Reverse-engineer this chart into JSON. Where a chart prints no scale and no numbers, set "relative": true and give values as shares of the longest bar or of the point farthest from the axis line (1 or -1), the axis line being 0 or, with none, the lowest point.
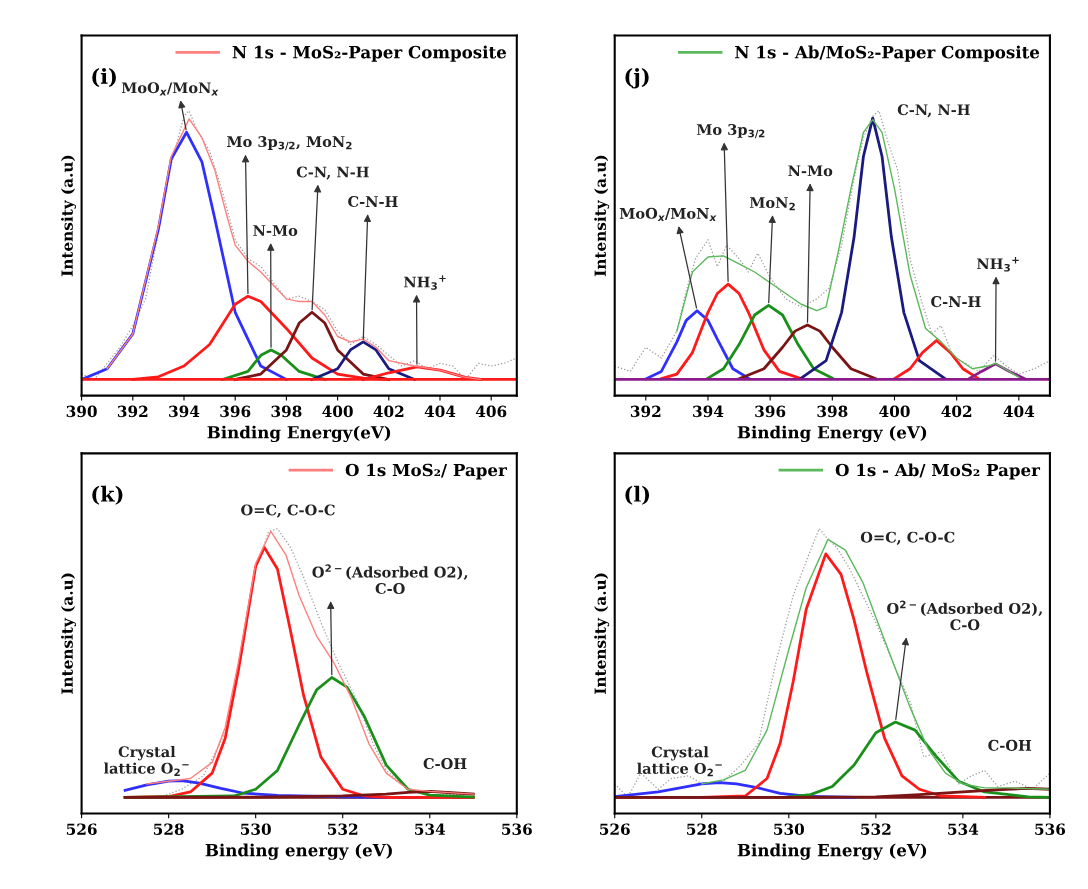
{
  "chart_data": [
    {
      "type": "line",
      "relative": true,
      "xlabel": "Binding Energy(eV)",
      "ylabel": "Intensity (a.u)",
      "xlim": [
        390,
        407
      ],
      "xticks": [
        390,
        392,
        394,
        396,
        398,
        400,
        402,
        404,
        406
      ],
      "tick_labels": "x",
      "grid": false,
      "legend": "top right",
      "annotations": [
        "(i)",
        {
          "text": "MoO$_{x}$/MoN$_{x}$",
          "x": 394.1,
          "y": 0.92
        },
        {
          "text": "Mo 3p$_{3/2}$, MoN$_{2}$",
          "x": 396.5,
          "y": 0.31
        },
        {
          "text": "N-Mo",
          "x": 397.4,
          "y": 0.11
        },
        {
          "text": "C-N, N-H",
          "x": 399,
          "y": 0.25
        },
        {
          "text": "C-N-H",
          "x": 401,
          "y": 0.14
        },
        {
          "text": "NH$_{3}$$^{+}$",
          "x": 403.1,
          "y": 0.047
        }
      ],
      "series": [
        {
          "color": "#9a9a9a",
          "line_style": "dotted",
          "x": [
            390,
            390.5,
            391,
            391.5,
            392,
            392.5,
            393,
            393.5,
            394,
            394.2,
            394.5,
            395,
            395.5,
            396,
            396.5,
            397,
            397.5,
            398,
            398.5,
            399,
            399.5,
            400,
            400.5,
            401,
            401.5,
            402,
            402.5,
            403,
            403.5,
            404,
            404.5,
            405,
            405.5,
            406,
            406.5,
            407
          ],
          "values": [
            0.02,
            0.0,
            0.06,
            0.12,
            0.2,
            0.3,
            0.55,
            0.8,
            0.98,
            1.0,
            0.93,
            0.85,
            0.7,
            0.52,
            0.45,
            0.42,
            0.36,
            0.3,
            0.31,
            0.29,
            0.26,
            0.18,
            0.13,
            0.16,
            0.13,
            0.09,
            0.05,
            0.07,
            0.04,
            0.06,
            0.05,
            0.0,
            0.06,
            0.05,
            0.06,
            0.08
          ]
        },
        {
          "color": "#2f2fff",
          "x": [
            390,
            391,
            392,
            393,
            393.5,
            394.1,
            394.7,
            395.2,
            396,
            397,
            398
          ],
          "values": [
            0.0,
            0.04,
            0.17,
            0.56,
            0.82,
            0.92,
            0.81,
            0.6,
            0.25,
            0.05,
            0.0
          ]
        },
        {
          "color": "#ff1a1a",
          "x": [
            392,
            393,
            394,
            395,
            396,
            396.5,
            397,
            398,
            399,
            400,
            401,
            402
          ],
          "values": [
            0.0,
            0.01,
            0.05,
            0.13,
            0.28,
            0.31,
            0.29,
            0.19,
            0.08,
            0.02,
            0.005,
            0.0
          ]
        },
        {
          "color": "#1a8f1a",
          "x": [
            395.5,
            396.5,
            397,
            397.4,
            397.8,
            398.5,
            399.5
          ],
          "values": [
            0.0,
            0.03,
            0.09,
            0.11,
            0.09,
            0.03,
            0.0
          ]
        },
        {
          "color": "#7a1515",
          "x": [
            396,
            397,
            398,
            398.5,
            399,
            399.5,
            400,
            401,
            402
          ],
          "values": [
            0.0,
            0.02,
            0.11,
            0.21,
            0.25,
            0.21,
            0.11,
            0.02,
            0.0
          ]
        },
        {
          "color": "#1a1a80",
          "x": [
            399,
            400,
            400.5,
            401,
            401.5,
            402,
            403
          ],
          "values": [
            0.0,
            0.04,
            0.11,
            0.14,
            0.11,
            0.04,
            0.0
          ]
        },
        {
          "color": "#ff1a1a",
          "x": [
            401,
            402,
            403.1,
            404,
            405,
            405.6
          ],
          "values": [
            0.0,
            0.025,
            0.047,
            0.035,
            0.008,
            0.0
          ]
        },
        {
          "color": "#ff1a1a",
          "x": [
            390,
            407
          ],
          "values": [
            0,
            0
          ]
        },
        {
          "name": "N 1s - MoS₂-Paper Composite",
          "color": "#ff7f7f",
          "x": [
            391,
            392,
            393,
            393.5,
            394.2,
            394.7,
            395.2,
            395.7,
            396,
            396.5,
            397,
            397.5,
            398,
            398.5,
            399,
            399.5,
            400,
            400.5,
            401,
            401.5,
            402,
            403,
            404,
            405,
            405.6
          ],
          "values": [
            0.04,
            0.17,
            0.57,
            0.83,
            0.97,
            0.9,
            0.78,
            0.6,
            0.5,
            0.44,
            0.4,
            0.35,
            0.3,
            0.29,
            0.29,
            0.24,
            0.16,
            0.14,
            0.15,
            0.12,
            0.07,
            0.05,
            0.035,
            0.008,
            0.0
          ]
        }
      ]
    },
    {
      "type": "line",
      "relative": true,
      "xlabel": "Binding Energy (eV)",
      "ylabel": "Intensity (a.u)",
      "xlim": [
        391,
        405
      ],
      "xticks": [
        392,
        394,
        396,
        398,
        400,
        402,
        404
      ],
      "tick_labels": "x",
      "grid": false,
      "legend": "top right",
      "annotations": [
        "(j)",
        {
          "text": "MoO$_{x}$/MoN$_{x}$",
          "x": 393.65,
          "y": 0.256
        },
        {
          "text": "Mo 3p$_{3/2}$",
          "x": 394.65,
          "y": 0.355
        },
        {
          "text": "MoN$_{2}$",
          "x": 395.95,
          "y": 0.276
        },
        {
          "text": "N-Mo",
          "x": 397.2,
          "y": 0.203
        },
        {
          "text": "C-N, N-H",
          "x": 399.3,
          "y": 0.973
        },
        {
          "text": "C-N-H",
          "x": 401.35,
          "y": 0.145
        },
        {
          "text": "NH$_{3}$$^{+}$",
          "x": 403.25,
          "y": 0.058
        }
      ],
      "series": [
        {
          "color": "#9a9a9a",
          "line_style": "dotted",
          "x": [
            391,
            391.5,
            392,
            392.5,
            393,
            393.3,
            393.6,
            394,
            394.3,
            394.6,
            395,
            395.3,
            395.6,
            396,
            396.5,
            397,
            397.5,
            397.9,
            398.3,
            398.7,
            399,
            399.3,
            399.5,
            399.8,
            400.1,
            400.5,
            400.9,
            401.2,
            401.5,
            401.9,
            402.3,
            402.7,
            403.2,
            403.6,
            404,
            404.5,
            405
          ],
          "values": [
            0.05,
            0.03,
            0.12,
            0.08,
            0.18,
            0.33,
            0.45,
            0.52,
            0.42,
            0.5,
            0.45,
            0.4,
            0.47,
            0.38,
            0.3,
            0.27,
            0.3,
            0.34,
            0.5,
            0.75,
            0.9,
            0.98,
            1.0,
            0.88,
            0.78,
            0.45,
            0.28,
            0.17,
            0.2,
            0.08,
            0.06,
            0.03,
            0.09,
            0.05,
            0.02,
            0.04,
            0.07
          ]
        },
        {
          "color": "#2f2fff",
          "x": [
            392,
            392.5,
            393,
            393.3,
            393.65,
            394,
            394.3,
            394.8,
            395.3
          ],
          "values": [
            0.002,
            0.03,
            0.14,
            0.22,
            0.256,
            0.22,
            0.15,
            0.04,
            0.005
          ]
        },
        {
          "color": "#ff1a1a",
          "x": [
            392.5,
            393,
            393.5,
            394,
            394.3,
            394.65,
            395,
            395.3,
            395.8,
            396.3,
            397
          ],
          "values": [
            0.003,
            0.02,
            0.1,
            0.25,
            0.32,
            0.355,
            0.32,
            0.25,
            0.11,
            0.03,
            0.003
          ]
        },
        {
          "color": "#1a8f1a",
          "x": [
            394,
            394.5,
            395,
            395.5,
            395.95,
            396.4,
            396.9,
            397.4,
            398
          ],
          "values": [
            0.005,
            0.04,
            0.13,
            0.24,
            0.276,
            0.24,
            0.13,
            0.04,
            0.005
          ]
        },
        {
          "color": "#7a1515",
          "x": [
            395,
            395.8,
            396.4,
            396.8,
            397.2,
            397.6,
            398,
            398.6,
            399.4
          ],
          "values": [
            0.003,
            0.04,
            0.12,
            0.18,
            0.203,
            0.18,
            0.12,
            0.04,
            0.003
          ]
        },
        {
          "color": "#1a1a80",
          "x": [
            397,
            397.8,
            398.3,
            398.7,
            399,
            399.3,
            399.6,
            399.9,
            400.3,
            400.8,
            401.6
          ],
          "values": [
            0.005,
            0.07,
            0.25,
            0.53,
            0.83,
            0.973,
            0.83,
            0.53,
            0.25,
            0.07,
            0.005
          ]
        },
        {
          "color": "#ff1a1a",
          "x": [
            400,
            400.5,
            400.9,
            401.35,
            401.8,
            402.2,
            402.7
          ],
          "values": [
            0.003,
            0.04,
            0.1,
            0.145,
            0.1,
            0.04,
            0.003
          ]
        },
        {
          "color": "#8b1a8b",
          "x": [
            402.4,
            402.8,
            403.25,
            403.7,
            404.2
          ],
          "values": [
            0.003,
            0.03,
            0.058,
            0.03,
            0.002
          ]
        },
        {
          "color": "#8b1a8b",
          "x": [
            391,
            405
          ],
          "values": [
            0,
            0
          ]
        },
        {
          "name": "N 1s - Ab/MoS₂-Paper Composite",
          "color": "#5cb85c",
          "x": [
            393,
            393.5,
            394,
            394.5,
            395,
            395.5,
            396,
            396.5,
            397,
            397.5,
            397.8,
            398.2,
            398.6,
            399,
            399.3,
            399.6,
            400,
            400.5,
            401,
            401.5,
            402,
            402.5,
            403,
            403.25,
            403.6,
            404
          ],
          "values": [
            0.18,
            0.4,
            0.456,
            0.46,
            0.43,
            0.4,
            0.36,
            0.32,
            0.28,
            0.256,
            0.27,
            0.48,
            0.71,
            0.92,
            0.967,
            0.92,
            0.71,
            0.39,
            0.19,
            0.14,
            0.08,
            0.04,
            0.05,
            0.06,
            0.037,
            0.008
          ]
        }
      ]
    },
    {
      "type": "line",
      "relative": true,
      "xlabel": "Binding energy (eV)",
      "ylabel": "Intensity (a.u)",
      "xlim": [
        526,
        536
      ],
      "xticks": [
        526,
        528,
        530,
        532,
        534,
        536
      ],
      "tick_labels": "x",
      "grid": false,
      "legend": "top right",
      "annotations": [
        "(k)",
        {
          "text": "O=C, C-O-C",
          "x": 530.2,
          "y": 0.93
        },
        {
          "text": "O$^{2−}$(Adsorbed O2),\nC-O",
          "x": 531.75,
          "y": 0.446
        },
        {
          "text": "Crystal\nlattice O$_{2}$$^{−}$",
          "x": 527.5,
          "y": 0.046
        },
        {
          "text": "C-OH",
          "x": 534,
          "y": 0.022
        }
      ],
      "series": [
        {
          "color": "#7a1515",
          "x": [
            527,
            535
          ],
          "values": [
            0,
            0
          ]
        },
        {
          "color": "#9a9a9a",
          "line_style": "dotted",
          "x": [
            527.8,
            528.3,
            528.8,
            529.3,
            529.7,
            530,
            530.3,
            530.5,
            530.8,
            531.1,
            531.5,
            531.9,
            532.3,
            532.7,
            533,
            533.5,
            534,
            535
          ],
          "values": [
            0.0,
            0.03,
            0.08,
            0.24,
            0.55,
            0.85,
            0.99,
            1.0,
            0.93,
            0.82,
            0.65,
            0.5,
            0.37,
            0.2,
            0.1,
            0.03,
            0.01,
            0.01
          ]
        },
        {
          "color": "#2f2fff",
          "x": [
            527,
            527.5,
            528,
            528.3,
            528.7,
            529.2,
            529.7,
            530.5,
            532,
            533
          ],
          "values": [
            0.026,
            0.046,
            0.06,
            0.062,
            0.053,
            0.033,
            0.016,
            0.007,
            0.002,
            0.0
          ]
        },
        {
          "color": "#ff1a1a",
          "x": [
            527,
            528,
            528.5,
            529,
            529.3,
            529.6,
            530,
            530.2,
            530.5,
            530.8,
            531.1,
            531.5,
            532,
            532.5,
            533,
            535
          ],
          "values": [
            0.0,
            0.003,
            0.02,
            0.09,
            0.22,
            0.47,
            0.86,
            0.93,
            0.85,
            0.62,
            0.38,
            0.15,
            0.03,
            0.005,
            0.0,
            0.0
          ]
        },
        {
          "color": "#1a8f1a",
          "x": [
            527,
            529.5,
            530,
            530.5,
            531,
            531.4,
            531.75,
            532.1,
            532.5,
            533,
            533.5,
            534,
            535
          ],
          "values": [
            0.0,
            0.005,
            0.03,
            0.1,
            0.27,
            0.4,
            0.446,
            0.41,
            0.3,
            0.12,
            0.03,
            0.008,
            0.001
          ]
        },
        {
          "color": "#7a1515",
          "x": [
            527,
            530,
            532,
            533,
            533.5,
            534,
            534.5,
            535
          ],
          "values": [
            0.0,
            0.001,
            0.005,
            0.012,
            0.018,
            0.022,
            0.017,
            0.012
          ]
        },
        {
          "name": "O 1s MoS₂/ Paper",
          "color": "#ff7f7f",
          "x": [
            527.5,
            528,
            528.5,
            529,
            529.3,
            529.6,
            530,
            530.35,
            530.7,
            531,
            531.4,
            531.8,
            532.2,
            532.6,
            533,
            533.5,
            534,
            535
          ],
          "values": [
            0.05,
            0.06,
            0.07,
            0.13,
            0.26,
            0.5,
            0.87,
            0.99,
            0.9,
            0.75,
            0.6,
            0.5,
            0.37,
            0.2,
            0.09,
            0.03,
            0.022,
            0.012
          ]
        }
      ]
    },
    {
      "type": "line",
      "relative": true,
      "xlabel": "Binding Energy (eV)",
      "ylabel": "Intensity (a.u)",
      "xlim": [
        526,
        536
      ],
      "xticks": [
        526,
        528,
        530,
        532,
        534,
        536
      ],
      "tick_labels": "x",
      "grid": false,
      "legend": "top right",
      "annotations": [
        "(l)",
        {
          "text": "O=C, C-O-C",
          "x": 530.85,
          "y": 0.906
        },
        {
          "text": "O$^{2−}$(Adsorbed O2),\nC-O",
          "x": 532.45,
          "y": 0.28
        },
        {
          "text": "Crystal\nlattice O$_{2}$$^{−}$",
          "x": 527.5,
          "y": 0.035
        },
        {
          "text": "C-OH",
          "x": 535.3,
          "y": 0.033
        }
      ],
      "series": [
        {
          "color": "#7a1515",
          "x": [
            526,
            536
          ],
          "values": [
            0,
            0
          ]
        },
        {
          "color": "#9a9a9a",
          "line_style": "dotted",
          "x": [
            526,
            526.3,
            526.6,
            527,
            527.3,
            527.7,
            528,
            528.5,
            528.9,
            529.3,
            529.7,
            530.1,
            530.5,
            530.7,
            530.85,
            531.1,
            531.4,
            531.7,
            532,
            532.4,
            532.8,
            533.1,
            533.5,
            533.9,
            534.2,
            534.5,
            534.8,
            535.2,
            535.6,
            536
          ],
          "values": [
            0.05,
            0.0,
            0.09,
            0.03,
            0.07,
            0.08,
            0.05,
            0.06,
            0.12,
            0.2,
            0.5,
            0.75,
            0.92,
            1.0,
            0.97,
            0.93,
            0.85,
            0.75,
            0.65,
            0.5,
            0.35,
            0.15,
            0.17,
            0.05,
            0.08,
            0.1,
            0.04,
            0.06,
            0.03,
            0.09
          ]
        },
        {
          "color": "#2f2fff",
          "x": [
            526,
            527,
            527.5,
            528,
            528.4,
            528.8,
            529.3,
            529.8,
            530.5,
            531.5
          ],
          "values": [
            0.003,
            0.02,
            0.035,
            0.05,
            0.055,
            0.05,
            0.035,
            0.015,
            0.003,
            0.0
          ]
        },
        {
          "color": "#ff1a1a",
          "x": [
            528,
            529,
            529.5,
            529.8,
            530.1,
            530.4,
            530.85,
            531.2,
            531.5,
            531.8,
            532.2,
            532.6,
            533,
            533.5,
            534.5
          ],
          "values": [
            0.0,
            0.005,
            0.07,
            0.2,
            0.43,
            0.7,
            0.906,
            0.83,
            0.66,
            0.46,
            0.22,
            0.08,
            0.03,
            0.005,
            0.0
          ]
        },
        {
          "color": "#1a8f1a",
          "x": [
            530,
            530.5,
            531,
            531.5,
            532,
            532.45,
            532.9,
            533.4,
            533.9,
            534.5,
            535.5,
            536
          ],
          "values": [
            0.002,
            0.01,
            0.04,
            0.12,
            0.24,
            0.28,
            0.25,
            0.15,
            0.06,
            0.02,
            0.002,
            0.0
          ]
        },
        {
          "color": "#7a1515",
          "x": [
            526,
            530,
            532,
            533,
            534,
            535,
            535.5,
            536
          ],
          "values": [
            0.0,
            0.0,
            0.002,
            0.01,
            0.02,
            0.03,
            0.033,
            0.03
          ]
        },
        {
          "name": "O 1s - Ab/ MoS₂ Paper",
          "color": "#5cb85c",
          "x": [
            528,
            528.5,
            529,
            529.5,
            530,
            530.4,
            530.9,
            531.3,
            531.7,
            532,
            532.4,
            532.8,
            533.2,
            533.6,
            534,
            534.5,
            535,
            536
          ],
          "values": [
            0.05,
            0.065,
            0.1,
            0.25,
            0.55,
            0.78,
            0.96,
            0.92,
            0.8,
            0.67,
            0.5,
            0.33,
            0.18,
            0.09,
            0.05,
            0.035,
            0.035,
            0.03
          ]
        }
      ]
    }
  ]
}
